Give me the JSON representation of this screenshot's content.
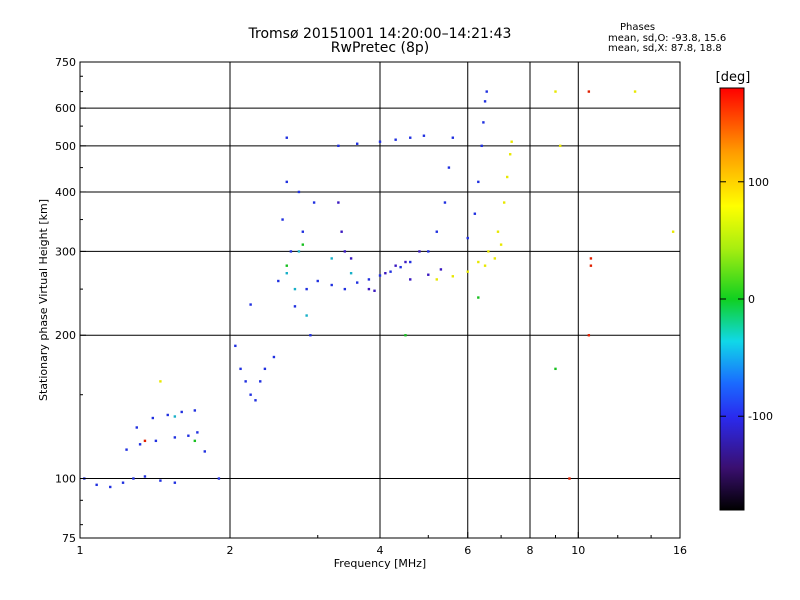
{
  "chart_data": {
    "type": "scatter",
    "title": "Tromsø 20151001 14:20:00–14:21:43",
    "subtitle": "RwPretec (8p)",
    "xlabel": "Frequency [MHz]",
    "ylabel": "Stationary phase Virtual Height [km]",
    "x_scale": "log",
    "y_scale": "log",
    "xlim": [
      1,
      16
    ],
    "ylim": [
      75,
      750
    ],
    "x_ticks": [
      1,
      2,
      4,
      6,
      8,
      10,
      16
    ],
    "y_ticks": [
      75,
      100,
      200,
      300,
      400,
      500,
      600,
      750
    ],
    "grid": true,
    "phase_legend": {
      "title": "Phases",
      "o_mode": "mean, sd,O: -93.8, 15.6",
      "x_mode": "mean, sd,X:  87.8, 18.8"
    },
    "colorbar": {
      "label": "[deg]",
      "ticks": [
        100,
        0,
        -100
      ],
      "range": [
        -180,
        180
      ]
    },
    "series": [
      {
        "color": "#2030e0",
        "points": [
          [
            1.02,
            100
          ],
          [
            1.08,
            97
          ],
          [
            1.15,
            96
          ],
          [
            1.22,
            98
          ],
          [
            1.28,
            100
          ],
          [
            1.35,
            101
          ],
          [
            1.45,
            99
          ],
          [
            1.55,
            98
          ],
          [
            1.24,
            115
          ],
          [
            1.3,
            128
          ],
          [
            1.4,
            134
          ],
          [
            1.5,
            136
          ],
          [
            1.6,
            138
          ],
          [
            1.7,
            139
          ],
          [
            1.32,
            118
          ],
          [
            1.42,
            120
          ],
          [
            1.55,
            122
          ],
          [
            1.65,
            123
          ],
          [
            1.72,
            125
          ],
          [
            1.78,
            114
          ],
          [
            1.9,
            100
          ],
          [
            2.05,
            190
          ],
          [
            2.1,
            170
          ],
          [
            2.15,
            160
          ],
          [
            2.2,
            150
          ],
          [
            2.25,
            146
          ],
          [
            2.3,
            160
          ],
          [
            2.2,
            232
          ],
          [
            2.35,
            170
          ],
          [
            2.45,
            180
          ],
          [
            2.5,
            260
          ],
          [
            2.55,
            350
          ],
          [
            2.6,
            420
          ],
          [
            2.6,
            520
          ],
          [
            2.65,
            300
          ],
          [
            2.7,
            230
          ],
          [
            2.75,
            400
          ],
          [
            2.8,
            330
          ],
          [
            2.85,
            250
          ],
          [
            2.9,
            200
          ],
          [
            2.95,
            380
          ],
          [
            3.0,
            260
          ],
          [
            3.2,
            255
          ],
          [
            3.4,
            250
          ],
          [
            3.6,
            258
          ],
          [
            3.8,
            262
          ],
          [
            4.0,
            267
          ],
          [
            4.2,
            272
          ],
          [
            4.4,
            278
          ],
          [
            4.6,
            285
          ],
          [
            5.0,
            300
          ],
          [
            5.2,
            330
          ],
          [
            5.4,
            380
          ],
          [
            5.5,
            450
          ],
          [
            5.6,
            520
          ],
          [
            6.0,
            320
          ],
          [
            6.2,
            360
          ],
          [
            6.3,
            420
          ],
          [
            6.4,
            500
          ],
          [
            6.45,
            560
          ],
          [
            6.5,
            620
          ],
          [
            6.55,
            650
          ],
          [
            3.3,
            500
          ],
          [
            3.6,
            505
          ],
          [
            4.0,
            510
          ],
          [
            4.3,
            515
          ],
          [
            4.6,
            520
          ],
          [
            4.9,
            525
          ]
        ]
      },
      {
        "color": "#3a18c0",
        "points": [
          [
            3.3,
            380
          ],
          [
            3.35,
            330
          ],
          [
            3.4,
            300
          ],
          [
            3.5,
            290
          ],
          [
            4.1,
            270
          ],
          [
            4.3,
            280
          ],
          [
            4.5,
            285
          ],
          [
            4.8,
            300
          ],
          [
            3.8,
            250
          ],
          [
            3.9,
            248
          ],
          [
            4.6,
            262
          ],
          [
            5.0,
            268
          ],
          [
            5.3,
            275
          ]
        ]
      },
      {
        "color": "#e8e800",
        "points": [
          [
            5.2,
            262
          ],
          [
            5.6,
            266
          ],
          [
            6.0,
            272
          ],
          [
            6.3,
            285
          ],
          [
            6.6,
            300
          ],
          [
            6.9,
            330
          ],
          [
            7.1,
            380
          ],
          [
            7.2,
            430
          ],
          [
            7.3,
            480
          ],
          [
            7.35,
            510
          ],
          [
            6.8,
            290
          ],
          [
            7.0,
            310
          ],
          [
            6.5,
            280
          ],
          [
            9.0,
            650
          ],
          [
            13.0,
            650
          ],
          [
            15.5,
            330
          ],
          [
            9.2,
            500
          ],
          [
            1.45,
            160
          ]
        ]
      },
      {
        "color": "#18b0c8",
        "points": [
          [
            2.6,
            270
          ],
          [
            2.7,
            250
          ],
          [
            2.75,
            300
          ],
          [
            2.85,
            220
          ],
          [
            3.2,
            290
          ],
          [
            3.5,
            270
          ],
          [
            1.55,
            135
          ]
        ]
      },
      {
        "color": "#18c020",
        "points": [
          [
            2.6,
            280
          ],
          [
            2.8,
            310
          ],
          [
            4.5,
            200
          ],
          [
            6.3,
            240
          ],
          [
            9.0,
            170
          ],
          [
            1.7,
            120
          ]
        ]
      },
      {
        "color": "#e02000",
        "points": [
          [
            10.5,
            650
          ],
          [
            10.6,
            290
          ],
          [
            10.6,
            280
          ],
          [
            10.5,
            200
          ],
          [
            1.35,
            120
          ],
          [
            9.6,
            100
          ]
        ]
      }
    ]
  }
}
